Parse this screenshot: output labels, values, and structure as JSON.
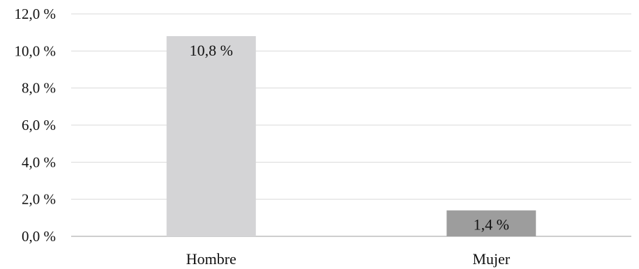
{
  "chart_data": {
    "type": "bar",
    "title": "",
    "xlabel": "",
    "ylabel": "",
    "categories": [
      "Hombre",
      "Mujer"
    ],
    "values": [
      10.8,
      1.4
    ],
    "data_labels": [
      "10,8 %",
      "1,4 %"
    ],
    "bar_colors": [
      "#d4d4d6",
      "#9d9d9d"
    ],
    "ylim": [
      0,
      12
    ],
    "yticks": [
      0,
      2,
      4,
      6,
      8,
      10,
      12
    ],
    "ytick_labels": [
      "0,0 %",
      "2,0 %",
      "4,0 %",
      "6,0 %",
      "8,0 %",
      "10,0 %",
      "12,0 %"
    ],
    "grid": true,
    "grid_color": "#d9d9d9",
    "legend": "none"
  }
}
